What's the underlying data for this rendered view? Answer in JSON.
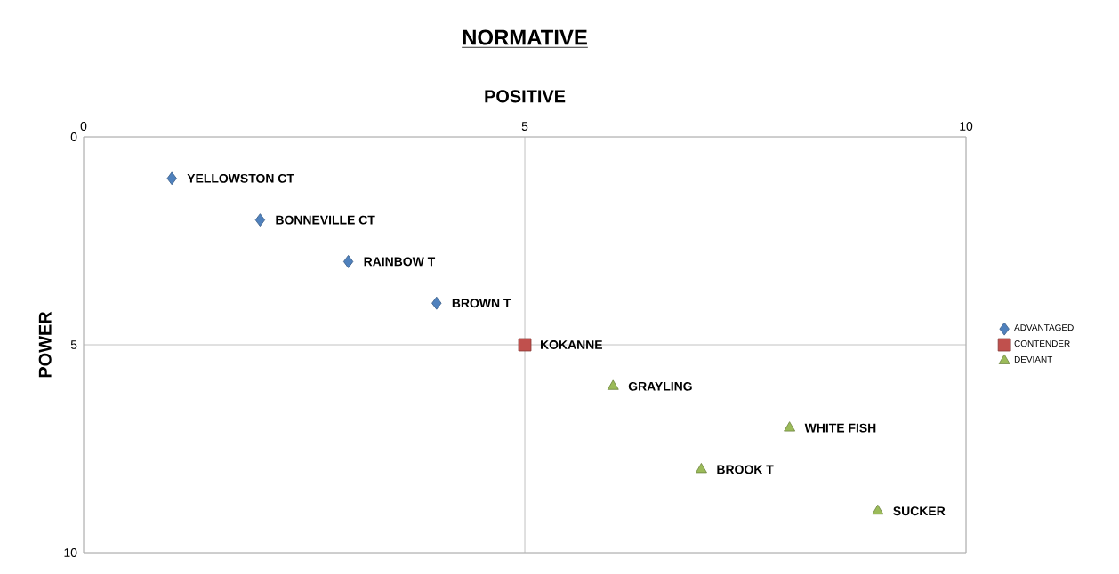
{
  "chart_data": {
    "type": "scatter",
    "title": "NORMATIVE",
    "xlabel": "POSITIVE",
    "ylabel": "POWER",
    "xlim": [
      0,
      10
    ],
    "xticks": [
      0,
      5,
      10
    ],
    "ylim": [
      10,
      0
    ],
    "yticks": [
      0,
      5,
      10
    ],
    "grid": true,
    "legend": "right",
    "series": [
      {
        "name": "ADVANTAGED",
        "color": "#4f81bd",
        "marker": "diamond",
        "x": [
          1,
          2,
          3,
          4
        ],
        "values": [
          1,
          2,
          3,
          4
        ]
      },
      {
        "name": "CONTENDER",
        "color": "#c0504d",
        "marker": "square",
        "x": [
          5
        ],
        "values": [
          5
        ]
      },
      {
        "name": "DEVIANT",
        "color": "#9bbb59",
        "marker": "triangle",
        "x": [
          6,
          8,
          7,
          9
        ],
        "values": [
          6,
          7,
          8,
          9
        ]
      }
    ],
    "annotations": [
      {
        "text": "YELLOWSTON CT",
        "x": 1,
        "y": 1
      },
      {
        "text": "BONNEVILLE CT",
        "x": 2,
        "y": 2
      },
      {
        "text": "RAINBOW T",
        "x": 3,
        "y": 3
      },
      {
        "text": "BROWN T",
        "x": 4,
        "y": 4
      },
      {
        "text": "KOKANNE",
        "x": 5,
        "y": 5
      },
      {
        "text": "GRAYLING",
        "x": 6,
        "y": 6
      },
      {
        "text": "WHITE FISH",
        "x": 8,
        "y": 7
      },
      {
        "text": "BROOK T",
        "x": 7,
        "y": 8
      },
      {
        "text": "SUCKER",
        "x": 9,
        "y": 9
      }
    ]
  }
}
